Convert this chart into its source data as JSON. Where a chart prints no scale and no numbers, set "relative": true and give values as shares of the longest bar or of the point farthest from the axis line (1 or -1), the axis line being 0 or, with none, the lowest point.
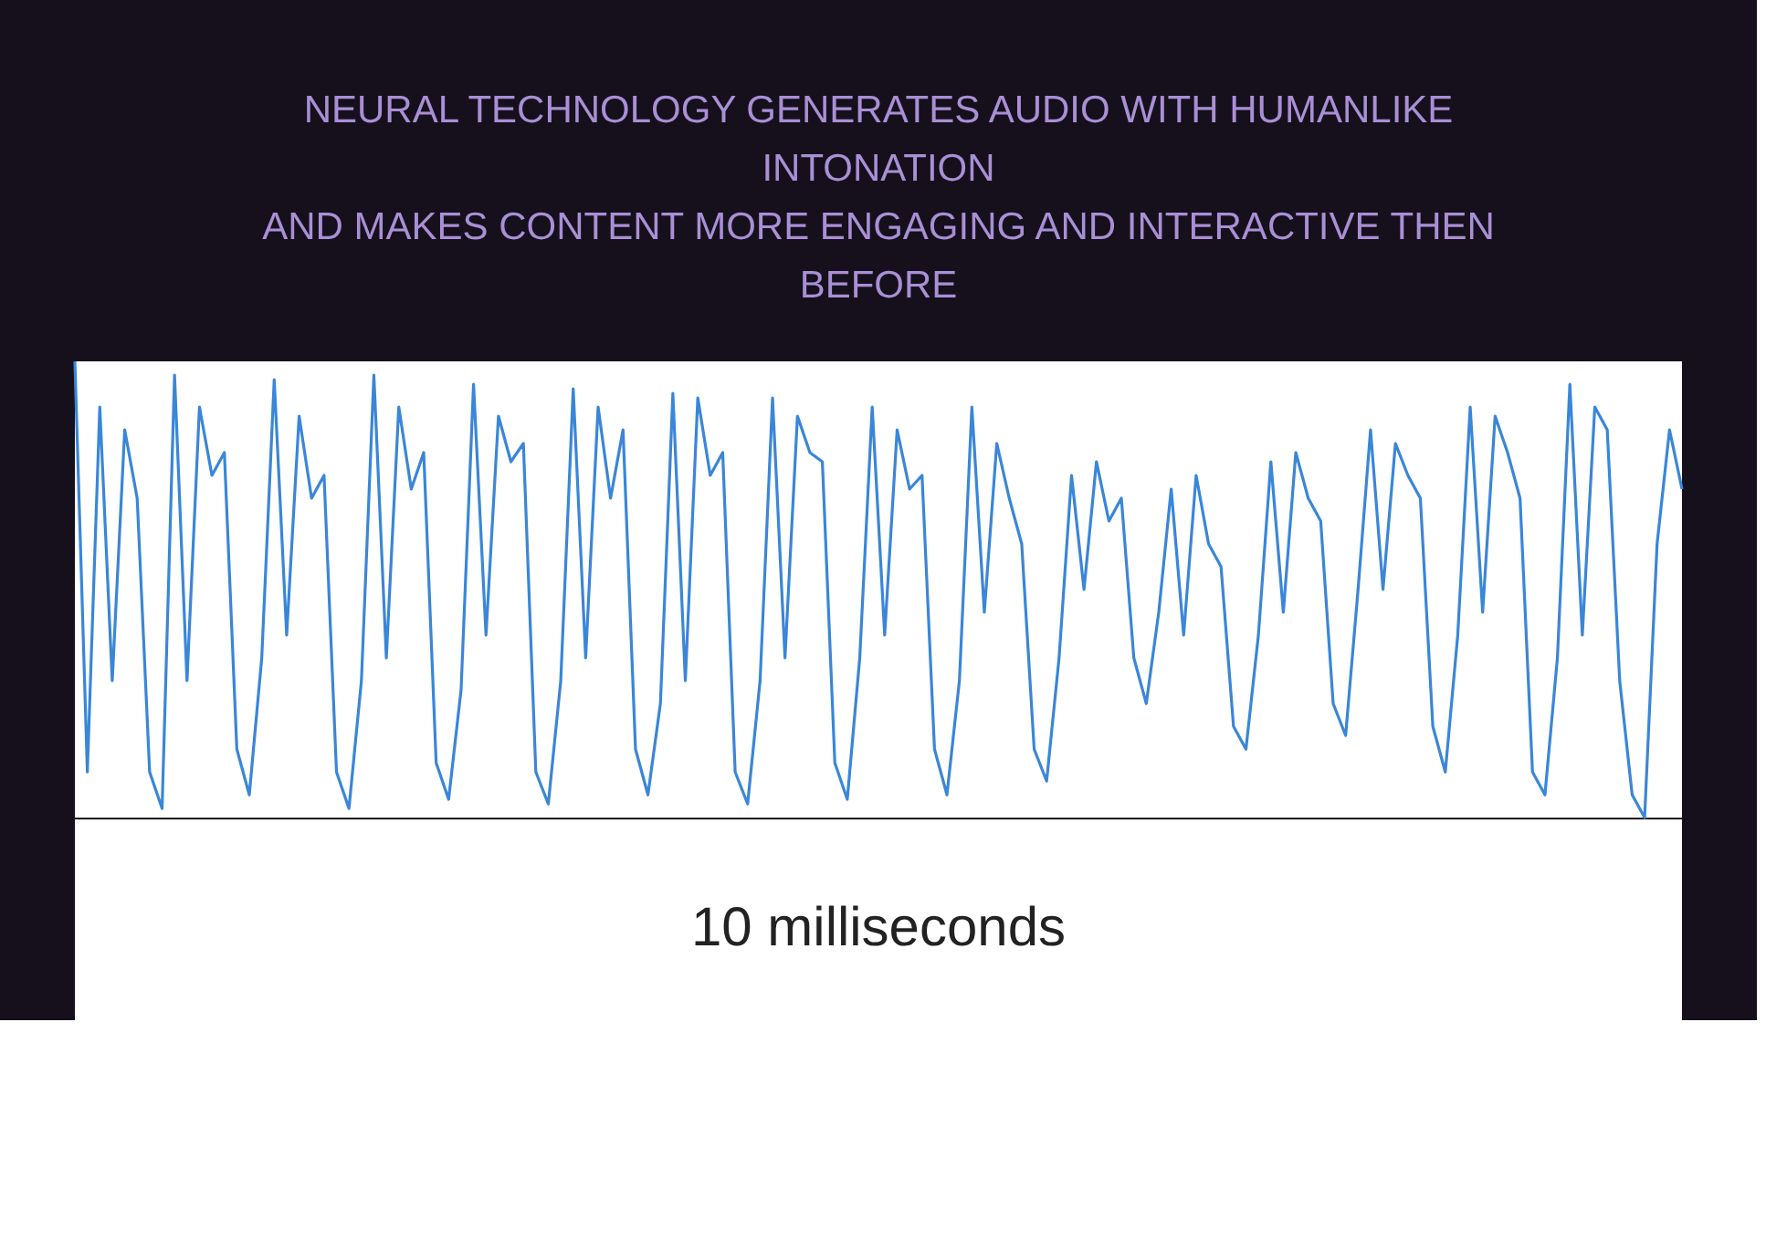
{
  "chart_data": {
    "type": "line",
    "relative": true,
    "title": "NEURAL TECHNOLOGY GENERATES AUDIO WITH HUMANLIKE INTONATION\nAND MAKES CONTENT MORE ENGAGING AND INTERACTIVE THEN BEFORE",
    "xlabel": "10 milliseconds",
    "categories": [
      null,
      null,
      null,
      null,
      null,
      null,
      null,
      null,
      null,
      null,
      null,
      null,
      null,
      null,
      null,
      null,
      null,
      null,
      null,
      null,
      null,
      null,
      null,
      null,
      null,
      null,
      null,
      null,
      null,
      null,
      null,
      null,
      null,
      null,
      null,
      null,
      null,
      null,
      null,
      null,
      null,
      null,
      null,
      null,
      null,
      null,
      null,
      null,
      null,
      null,
      null,
      null,
      null,
      null,
      null,
      null,
      null,
      null,
      null,
      null,
      null,
      null,
      null,
      null,
      null,
      null,
      null,
      null,
      null,
      null,
      null,
      null,
      null,
      null,
      null,
      null,
      null,
      null,
      null,
      null,
      null,
      null,
      null,
      null,
      null,
      null,
      null,
      null,
      null,
      null,
      null,
      null,
      null,
      null,
      null,
      null,
      null,
      null,
      null,
      null,
      null,
      null,
      null,
      null,
      null,
      null,
      null,
      null,
      null,
      null,
      null,
      null,
      null,
      null,
      null,
      null,
      null,
      null,
      null,
      null,
      null,
      null,
      null,
      null,
      null,
      null,
      null,
      null,
      null,
      null
    ],
    "series": [
      {
        "color": "#3a86d8",
        "values": [
          1,
          0.1,
          0.9,
          0.3,
          0.85,
          0.7,
          0.1,
          0.02,
          0.97,
          0.3,
          0.9,
          0.75,
          0.8,
          0.15,
          0.05,
          0.35,
          0.96,
          0.4,
          0.88,
          0.7,
          0.75,
          0.1,
          0.02,
          0.3,
          0.97,
          0.35,
          0.9,
          0.72,
          0.8,
          0.12,
          0.04,
          0.28,
          0.95,
          0.4,
          0.88,
          0.78,
          0.82,
          0.1,
          0.03,
          0.3,
          0.94,
          0.35,
          0.9,
          0.7,
          0.85,
          0.15,
          0.05,
          0.25,
          0.93,
          0.3,
          0.92,
          0.75,
          0.8,
          0.1,
          0.03,
          0.3,
          0.92,
          0.35,
          0.88,
          0.8,
          0.78,
          0.12,
          0.04,
          0.35,
          0.9,
          0.4,
          0.85,
          0.72,
          0.75,
          0.15,
          0.05,
          0.3,
          0.9,
          0.45,
          0.82,
          0.7,
          0.6,
          0.15,
          0.08,
          0.35,
          0.75,
          0.5,
          0.78,
          0.65,
          0.7,
          0.35,
          0.25,
          0.45,
          0.72,
          0.4,
          0.75,
          0.6,
          0.55,
          0.2,
          0.15,
          0.4,
          0.78,
          0.45,
          0.8,
          0.7,
          0.65,
          0.25,
          0.18,
          0.5,
          0.85,
          0.5,
          0.82,
          0.75,
          0.7,
          0.2,
          0.1,
          0.4,
          0.9,
          0.45,
          0.88,
          0.8,
          0.7,
          0.1,
          0.05,
          0.35,
          0.95,
          0.4,
          0.9,
          0.85,
          0.3,
          0.05,
          0.0,
          0.6,
          0.85,
          0.72
        ]
      }
    ]
  }
}
